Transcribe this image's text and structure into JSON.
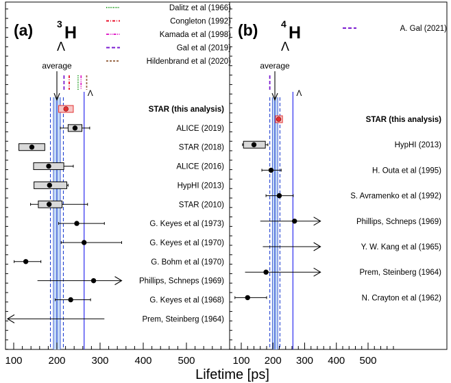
{
  "figure": {
    "xlabel": "Lifetime [ps]",
    "x_ticks": [
      100,
      200,
      300,
      400,
      500
    ],
    "colors": {
      "lambda_line": "#3a3af0",
      "avg_band": "#c6dcf5",
      "avg_band_edge": "#1f3fd0",
      "star_box": "#f7c6c6",
      "star_edge": "#e23030",
      "box_fill": "#d9d9d9"
    }
  },
  "chart_data": [
    {
      "type": "scatter",
      "panel_letter": "(a)",
      "nucleus": {
        "mass_number": "3",
        "symbol": "H",
        "sub": "Λ"
      },
      "xlim": [
        80,
        590
      ],
      "lambda_label": "Λ",
      "lambda_value": 263,
      "average_label": "average",
      "average": {
        "value": 200,
        "band": [
          192,
          208
        ],
        "syst": [
          185,
          215
        ]
      },
      "theory_legend": [
        {
          "name": "Dalitz et al (1966)",
          "color": "#1a9a1a",
          "dash": "1,1.5",
          "value": 256
        },
        {
          "name": "Congleton (1992)",
          "color": "#e8102a",
          "dash": "4,2,1,2",
          "value": 232
        },
        {
          "name": "Kamada et al (1998)",
          "color": "#e020c8",
          "dash": "4,1.5,1,1.5,1,1.5",
          "value": 256
        },
        {
          "name": "Gal et al (2019)",
          "color": "#7a1ad0",
          "dash": "5,3",
          "value": 213
        },
        {
          "name": "Hildenbrand et al (2020)",
          "color": "#9a6a4a",
          "dash": "3,2",
          "value": 262
        }
      ],
      "measurements": [
        {
          "label": "STAR (this analysis)",
          "value": 221,
          "stat": [
            213,
            229
          ],
          "syst_box": [
            204,
            238
          ],
          "star": true,
          "arrow": ""
        },
        {
          "label": "ALICE (2019)",
          "value": 242,
          "stat": [
            208,
            276
          ],
          "syst_box": [
            226,
            258
          ],
          "arrow": ""
        },
        {
          "label": "STAR (2018)",
          "value": 142,
          "stat": [
            118,
            166
          ],
          "syst_box": [
            112,
            172
          ],
          "arrow": ""
        },
        {
          "label": "ALICE (2016)",
          "value": 181,
          "stat": [
            148,
            238
          ],
          "syst_box": [
            146,
            216
          ],
          "arrow": ""
        },
        {
          "label": "HypHI (2013)",
          "value": 183,
          "stat": [
            150,
            226
          ],
          "syst_box": [
            147,
            223
          ],
          "arrow": ""
        },
        {
          "label": "STAR (2010)",
          "value": 182,
          "stat": [
            139,
            271
          ],
          "syst_box": [
            157,
            212
          ],
          "arrow": ""
        },
        {
          "label": "G. Keyes et al (1973)",
          "value": 246,
          "stat": [
            204,
            310
          ],
          "arrow": ""
        },
        {
          "label": "G. Keyes et al (1970)",
          "value": 263,
          "stat": [
            210,
            350
          ],
          "arrow": ""
        },
        {
          "label": "G. Bohm et al (1970)",
          "value": 128,
          "stat": [
            101,
            163
          ],
          "arrow": ""
        },
        {
          "label": "Phillips, Schneps (1969)",
          "value": 285,
          "stat": [
            155,
            350
          ],
          "arrow": "right"
        },
        {
          "label": "G. Keyes et al (1968)",
          "value": 232,
          "stat": [
            196,
            278
          ],
          "arrow": ""
        },
        {
          "label": "Prem, Steinberg (1964)",
          "value": null,
          "stat": [
            80,
            310
          ],
          "arrow": "left"
        }
      ]
    },
    {
      "type": "scatter",
      "panel_letter": "(b)",
      "nucleus": {
        "mass_number": "4",
        "symbol": "H",
        "sub": "Λ"
      },
      "xlim": [
        80,
        590
      ],
      "lambda_label": "Λ",
      "lambda_value": 263,
      "average_label": "average",
      "average": {
        "value": 206,
        "band": [
          198,
          215
        ],
        "syst": [
          190,
          222
        ]
      },
      "theory_legend": [
        {
          "name": "A. Gal (2021)",
          "color": "#7a1ad0",
          "dash": "5,3",
          "value": 190
        }
      ],
      "measurements": [
        {
          "label": "STAR (this analysis)",
          "value": 218,
          "stat": [
            211,
            225
          ],
          "syst_box": [
            208,
            230
          ],
          "star": true,
          "arrow": ""
        },
        {
          "label": "HypHI (2013)",
          "value": 140,
          "stat": [
            104,
            184
          ],
          "syst_box": [
            107,
            176
          ],
          "arrow": ""
        },
        {
          "label": "H. Outa et al (1995)",
          "value": 194,
          "stat": [
            165,
            226
          ],
          "arrow": ""
        },
        {
          "label": "S. Avramenko et al (1992)",
          "value": 220,
          "stat": [
            178,
            264
          ],
          "arrow": ""
        },
        {
          "label": "Phillips, Schneps (1969)",
          "value": 268,
          "stat": [
            160,
            350
          ],
          "arrow": "right"
        },
        {
          "label": "Y. W. Kang et al (1965)",
          "value": null,
          "stat": [
            168,
            350
          ],
          "arrow": "right"
        },
        {
          "label": "Prem, Steinberg (1964)",
          "value": 178,
          "stat": [
            112,
            350
          ],
          "arrow": "right"
        },
        {
          "label": "N. Crayton et al (1962)",
          "value": 120,
          "stat": [
            80,
            180
          ],
          "arrow": ""
        }
      ]
    }
  ]
}
